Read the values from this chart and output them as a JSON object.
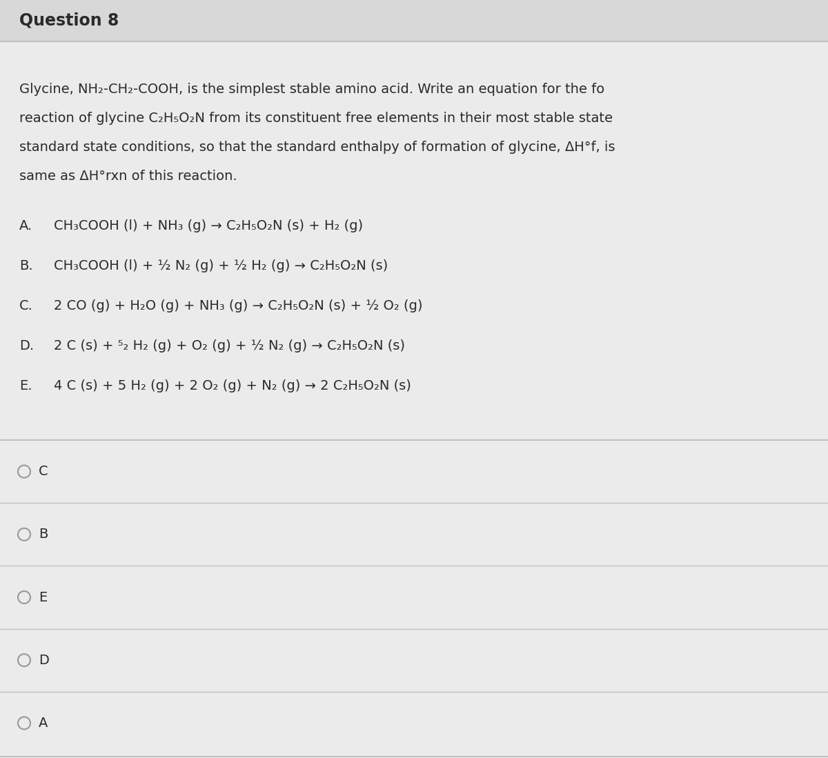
{
  "title": "Question 8",
  "title_bg": "#d8d8d8",
  "content_bg": "#ebebeb",
  "question_lines": [
    "Glycine, NH₂-CH₂-COOH, is the simplest stable amino acid. Write an equation for the fo",
    "reaction of glycine C₂H₅O₂N from its constituent free elements in their most stable state",
    "standard state conditions, so that the standard enthalpy of formation of glycine, ΔH°f, is",
    "same as ΔH°rxn of this reaction."
  ],
  "options": [
    [
      "A.",
      "CH₃COOH (l) + NH₃ (g) → C₂H₅O₂N (s) + H₂ (g)"
    ],
    [
      "B.",
      "CH₃COOH (l) + ½ N₂ (g) + ½ H₂ (g) → C₂H₅O₂N (s)"
    ],
    [
      "C.",
      "2 CO (g) + H₂O (g) + NH₃ (g) → C₂H₅O₂N (s) + ½ O₂ (g)"
    ],
    [
      "D.",
      "2 C (s) + ⁵₂ H₂ (g) + O₂ (g) + ½ N₂ (g) → C₂H₅O₂N (s)"
    ],
    [
      "E.",
      "4 C (s) + 5 H₂ (g) + 2 O₂ (g) + N₂ (g) → 2 C₂H₅O₂N (s)"
    ]
  ],
  "choices": [
    "C",
    "B",
    "E",
    "D",
    "A"
  ],
  "text_color": "#2a2a2a",
  "divider_color": "#c0c0c0",
  "circle_color": "#999999",
  "font_size_title": 17,
  "font_size_question": 14,
  "font_size_option": 14,
  "font_size_choice": 14
}
